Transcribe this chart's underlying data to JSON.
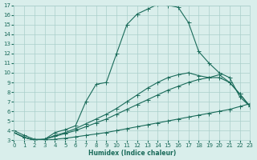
{
  "xlabel": "Humidex (Indice chaleur)",
  "bg_color": "#d9eeeb",
  "line_color": "#1a6b5a",
  "grid_color": "#aacfca",
  "xlim": [
    0,
    23
  ],
  "ylim": [
    3,
    17
  ],
  "xticks": [
    0,
    1,
    2,
    3,
    4,
    5,
    6,
    7,
    8,
    9,
    10,
    11,
    12,
    13,
    14,
    15,
    16,
    17,
    18,
    19,
    20,
    21,
    22,
    23
  ],
  "yticks": [
    3,
    4,
    5,
    6,
    7,
    8,
    9,
    10,
    11,
    12,
    13,
    14,
    15,
    16,
    17
  ],
  "curve_peak": [
    [
      0,
      4.0
    ],
    [
      1,
      3.5
    ],
    [
      2,
      3.1
    ],
    [
      3,
      3.1
    ],
    [
      4,
      3.8
    ],
    [
      5,
      4.1
    ],
    [
      6,
      4.5
    ],
    [
      7,
      7.0
    ],
    [
      8,
      8.8
    ],
    [
      9,
      9.0
    ],
    [
      10,
      12.0
    ],
    [
      11,
      15.0
    ],
    [
      12,
      16.1
    ],
    [
      13,
      16.6
    ],
    [
      14,
      17.1
    ],
    [
      15,
      17.0
    ],
    [
      16,
      16.8
    ],
    [
      17,
      15.2
    ],
    [
      18,
      12.2
    ],
    [
      19,
      11.0
    ],
    [
      20,
      10.0
    ],
    [
      21,
      9.5
    ],
    [
      22,
      7.5
    ],
    [
      23,
      6.5
    ]
  ],
  "curve_diag": [
    [
      0,
      3.8
    ],
    [
      1,
      3.3
    ],
    [
      2,
      3.0
    ],
    [
      3,
      3.0
    ],
    [
      4,
      3.1
    ],
    [
      5,
      3.2
    ],
    [
      6,
      3.35
    ],
    [
      7,
      3.5
    ],
    [
      8,
      3.65
    ],
    [
      9,
      3.8
    ],
    [
      10,
      4.0
    ],
    [
      11,
      4.2
    ],
    [
      12,
      4.4
    ],
    [
      13,
      4.6
    ],
    [
      14,
      4.8
    ],
    [
      15,
      5.0
    ],
    [
      16,
      5.2
    ],
    [
      17,
      5.4
    ],
    [
      18,
      5.6
    ],
    [
      19,
      5.8
    ],
    [
      20,
      6.0
    ],
    [
      21,
      6.2
    ],
    [
      22,
      6.5
    ],
    [
      23,
      6.8
    ]
  ],
  "curve_mid_peak": [
    [
      0,
      3.8
    ],
    [
      1,
      3.3
    ],
    [
      2,
      3.0
    ],
    [
      3,
      3.1
    ],
    [
      4,
      3.5
    ],
    [
      5,
      3.8
    ],
    [
      6,
      4.2
    ],
    [
      7,
      4.7
    ],
    [
      8,
      5.2
    ],
    [
      9,
      5.7
    ],
    [
      10,
      6.3
    ],
    [
      11,
      7.0
    ],
    [
      12,
      7.7
    ],
    [
      13,
      8.4
    ],
    [
      14,
      9.0
    ],
    [
      15,
      9.5
    ],
    [
      16,
      9.8
    ],
    [
      17,
      10.0
    ],
    [
      18,
      9.7
    ],
    [
      19,
      9.5
    ],
    [
      20,
      9.8
    ],
    [
      21,
      9.0
    ],
    [
      22,
      7.8
    ],
    [
      23,
      6.5
    ]
  ],
  "curve_straight_rise": [
    [
      0,
      3.8
    ],
    [
      1,
      3.3
    ],
    [
      2,
      3.0
    ],
    [
      3,
      3.1
    ],
    [
      4,
      3.4
    ],
    [
      5,
      3.7
    ],
    [
      6,
      4.0
    ],
    [
      7,
      4.4
    ],
    [
      8,
      4.8
    ],
    [
      9,
      5.2
    ],
    [
      10,
      5.7
    ],
    [
      11,
      6.2
    ],
    [
      12,
      6.7
    ],
    [
      13,
      7.2
    ],
    [
      14,
      7.7
    ],
    [
      15,
      8.2
    ],
    [
      16,
      8.6
    ],
    [
      17,
      9.0
    ],
    [
      18,
      9.3
    ],
    [
      19,
      9.5
    ],
    [
      20,
      9.5
    ],
    [
      21,
      9.0
    ],
    [
      22,
      7.8
    ],
    [
      23,
      6.5
    ]
  ]
}
